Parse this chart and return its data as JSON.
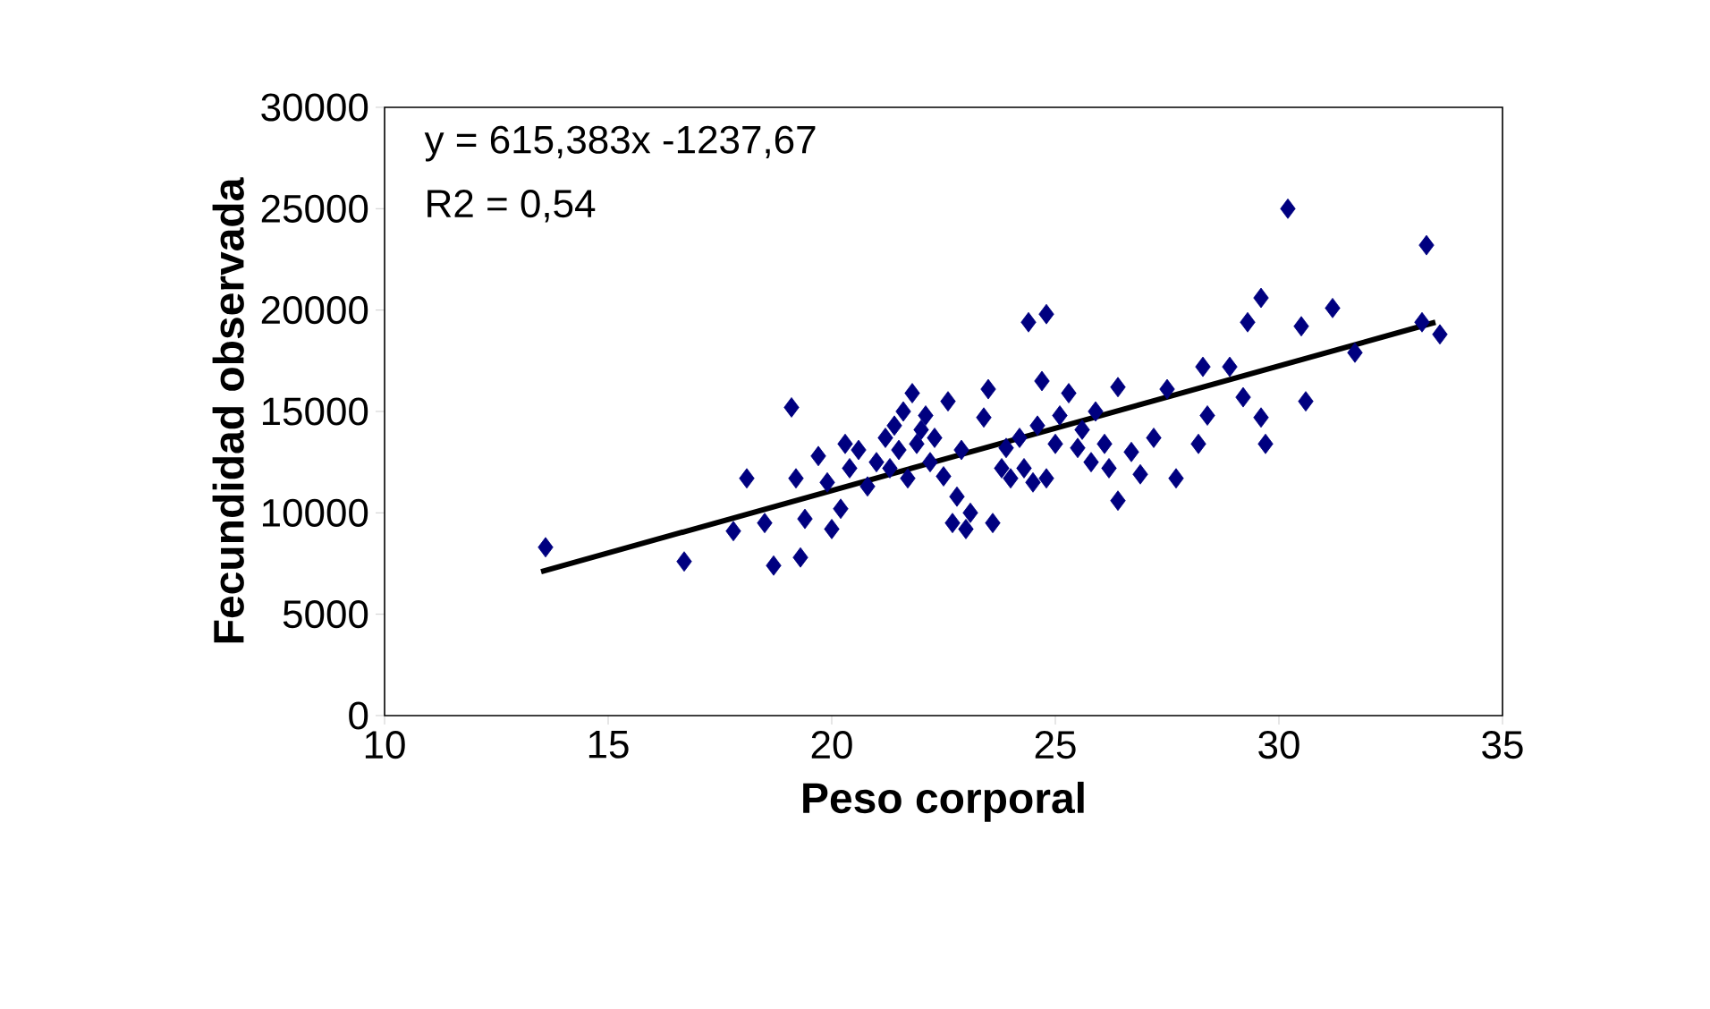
{
  "chart_data": {
    "type": "scatter",
    "xlabel": "Peso corporal",
    "ylabel": "Fecundidad observada",
    "annotations": [
      "y = 615,383x -1237,67",
      "R2 = 0,54"
    ],
    "xlim": [
      10,
      35
    ],
    "ylim": [
      0,
      30000
    ],
    "xticks": [
      10,
      15,
      20,
      25,
      30,
      35
    ],
    "yticks": [
      0,
      5000,
      10000,
      15000,
      20000,
      25000,
      30000
    ],
    "marker": "diamond",
    "series": [
      {
        "color": "#000080",
        "x": [
          13.6,
          16.7,
          18.1,
          17.8,
          18.5,
          18.7,
          19.1,
          19.2,
          19.3,
          19.4,
          19.7,
          19.9,
          20.0,
          20.2,
          20.3,
          20.4,
          20.6,
          20.8,
          21.0,
          21.2,
          21.3,
          21.4,
          21.5,
          21.6,
          21.7,
          21.8,
          21.9,
          22.0,
          22.1,
          22.2,
          22.3,
          22.5,
          22.6,
          22.7,
          22.8,
          22.9,
          23.0,
          23.1,
          23.4,
          23.5,
          23.6,
          23.8,
          23.9,
          24.0,
          24.2,
          24.3,
          24.4,
          24.5,
          24.6,
          24.7,
          24.8,
          24.8,
          25.0,
          25.1,
          25.3,
          25.5,
          25.6,
          25.8,
          25.9,
          26.1,
          26.2,
          26.4,
          26.4,
          26.7,
          26.9,
          27.2,
          27.5,
          27.7,
          28.2,
          28.4,
          28.3,
          28.9,
          29.2,
          29.3,
          29.6,
          29.6,
          29.7,
          30.2,
          30.5,
          30.6,
          31.2,
          31.7,
          33.3,
          33.2,
          33.6
        ],
        "values": [
          8300,
          7600,
          11700,
          9100,
          9500,
          7400,
          15200,
          11700,
          7800,
          9700,
          12800,
          11500,
          9200,
          10200,
          13400,
          12200,
          13100,
          11300,
          12500,
          13700,
          12200,
          14300,
          13100,
          15000,
          11700,
          15900,
          13400,
          14100,
          14800,
          12500,
          13700,
          11800,
          15500,
          9500,
          10800,
          13100,
          9200,
          10000,
          14700,
          16100,
          9500,
          12200,
          13200,
          11700,
          13700,
          12200,
          19400,
          11500,
          14300,
          16500,
          19800,
          11700,
          13400,
          14800,
          15900,
          13200,
          14100,
          12500,
          15000,
          13400,
          12200,
          16200,
          10600,
          13000,
          11900,
          13700,
          16100,
          11700,
          13400,
          14800,
          17200,
          17200,
          15700,
          19400,
          20600,
          14700,
          13400,
          25000,
          19200,
          15500,
          20100,
          17900,
          23200,
          19400,
          18800
        ]
      },
      {
        "type": "line",
        "color": "#000000",
        "marker": "none",
        "x": [
          13.5,
          33.5
        ],
        "values": [
          7100,
          19400
        ]
      }
    ]
  }
}
